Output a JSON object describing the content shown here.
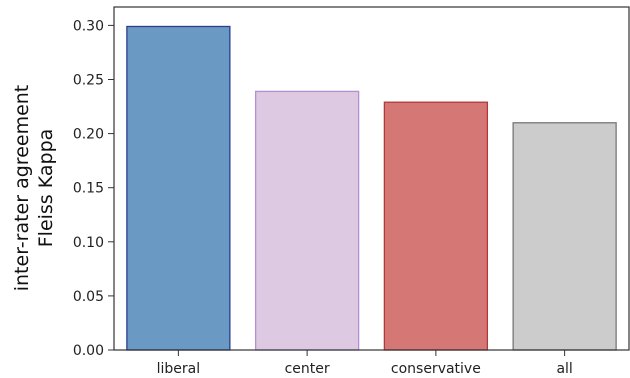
{
  "chart_data": {
    "type": "bar",
    "title": "",
    "xlabel": "",
    "ylabel": "inter-rater agreement",
    "ylabel2": "Fleiss Kappa",
    "ylim": [
      0,
      0.317
    ],
    "yticks": [
      "0.00",
      "0.05",
      "0.10",
      "0.15",
      "0.20",
      "0.25",
      "0.30"
    ],
    "categories": [
      "liberal",
      "center",
      "conservative",
      "all"
    ],
    "values": [
      0.299,
      0.239,
      0.229,
      0.21
    ],
    "colors": [
      "#6a9ac4",
      "#ddc9e1",
      "#d57875",
      "#cccccc"
    ],
    "edge_colors": [
      "#2b3f8c",
      "#b38fd6",
      "#b03a3a",
      "#777777"
    ],
    "grid": false
  }
}
